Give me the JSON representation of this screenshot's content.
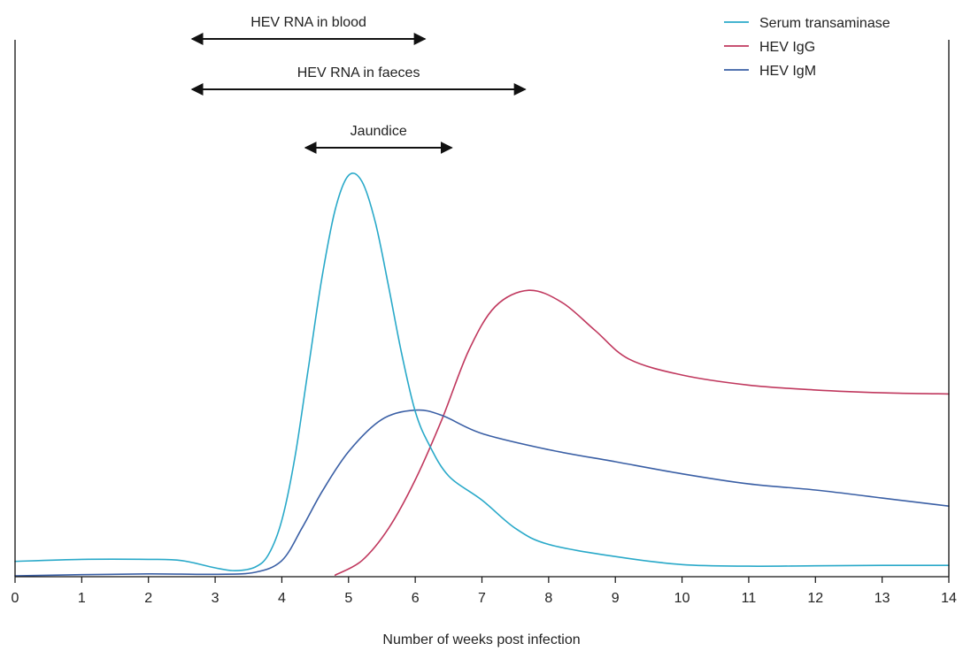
{
  "chart_data": {
    "type": "line",
    "title": "",
    "xlabel": "Number of weeks post infection",
    "ylabel": "",
    "xlim": [
      0,
      14
    ],
    "ylim": [
      0,
      100
    ],
    "xticks": [
      0,
      1,
      2,
      3,
      4,
      5,
      6,
      7,
      8,
      9,
      10,
      11,
      12,
      13,
      14
    ],
    "grid": false,
    "legend_position": "top-right",
    "series": [
      {
        "name": "Serum transaminase",
        "color": "#29a9c9",
        "x": [
          0,
          1,
          2,
          2.5,
          3,
          3.3,
          3.6,
          3.8,
          4.0,
          4.2,
          4.4,
          4.6,
          4.8,
          5.0,
          5.2,
          5.4,
          5.6,
          5.8,
          6.0,
          6.2,
          6.5,
          7.0,
          7.5,
          8.0,
          9.0,
          10.0,
          11.0,
          12.0,
          13.0,
          14.0
        ],
        "y": [
          3.8,
          4.3,
          4.3,
          4.0,
          2.2,
          1.5,
          2.4,
          5.5,
          14,
          30,
          52,
          74,
          91,
          99.5,
          98,
          88,
          72,
          55,
          41,
          33,
          25,
          19,
          12,
          8,
          5,
          3,
          2.6,
          2.7,
          2.8,
          2.8
        ]
      },
      {
        "name": "HEV IgG",
        "color": "#c0385e",
        "x": [
          4.8,
          5.2,
          5.6,
          6.0,
          6.4,
          6.8,
          7.2,
          7.7,
          8.2,
          8.7,
          9.2,
          10.0,
          11.0,
          12.0,
          13.0,
          14.0
        ],
        "y": [
          0.4,
          4,
          12,
          24,
          39,
          56,
          67,
          71,
          68,
          61,
          54,
          50,
          47.5,
          46.3,
          45.6,
          45.3
        ]
      },
      {
        "name": "HEV IgM",
        "color": "#3a5fa5",
        "x": [
          0,
          1,
          2,
          3,
          3.6,
          4.0,
          4.3,
          4.6,
          5.0,
          5.5,
          6.0,
          6.4,
          7.0,
          8.0,
          9.0,
          10.0,
          11.0,
          12.0,
          13.0,
          14.0
        ],
        "y": [
          0.2,
          0.5,
          0.7,
          0.6,
          1.1,
          4,
          12,
          21,
          31,
          39,
          41.3,
          40,
          35.5,
          31.5,
          28.5,
          25.5,
          23,
          21.5,
          19.5,
          17.5
        ]
      }
    ],
    "annotations": [
      {
        "label": "HEV RNA in blood",
        "x_start": 2.6,
        "x_end": 6.2
      },
      {
        "label": "HEV RNA in faeces",
        "x_start": 2.6,
        "x_end": 7.7
      },
      {
        "label": "Jaundice",
        "x_start": 4.3,
        "x_end": 6.6
      }
    ]
  }
}
